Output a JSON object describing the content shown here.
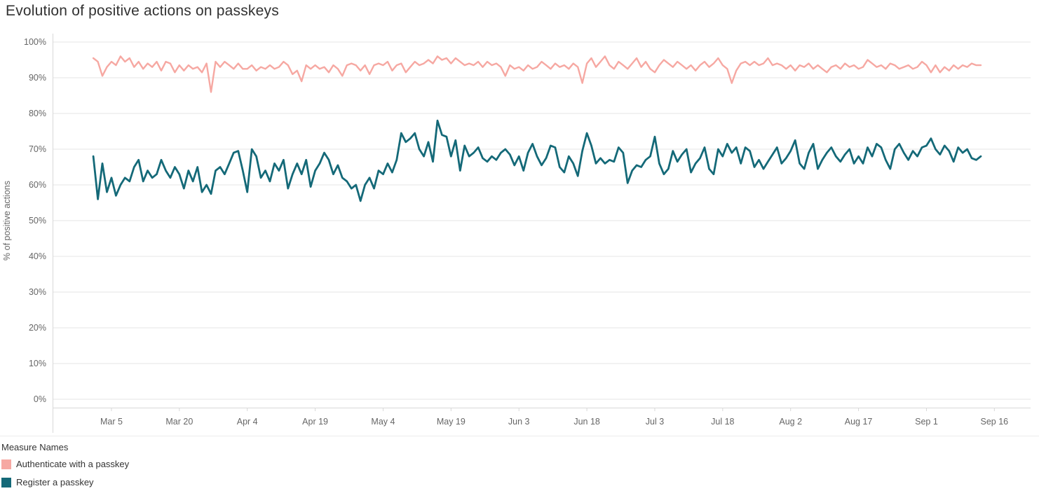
{
  "legend": {
    "title": "Measure Names",
    "items": [
      {
        "label": "Authenticate with a passkey",
        "color": "#f6a8a2"
      },
      {
        "label": "Register a passkey",
        "color": "#146978"
      }
    ]
  },
  "chart_data": {
    "type": "line",
    "title": "Evolution of positive actions on passkeys",
    "xlabel": "",
    "ylabel": "% of positive actions",
    "ylim": [
      0,
      100
    ],
    "y_tick_labels": [
      "0%",
      "10%",
      "20%",
      "30%",
      "40%",
      "50%",
      "60%",
      "70%",
      "80%",
      "90%",
      "100%"
    ],
    "x_tick_labels": [
      "Mar 5",
      "Mar 20",
      "Apr 4",
      "Apr 19",
      "May 4",
      "May 19",
      "Jun 3",
      "Jun 18",
      "Jul 3",
      "Jul 18",
      "Aug 2",
      "Aug 17",
      "Sep 1",
      "Sep 16"
    ],
    "x_tick_day_indices": [
      4,
      19,
      34,
      49,
      64,
      79,
      94,
      109,
      124,
      139,
      154,
      169,
      184,
      199
    ],
    "x_domain_days": [
      -9,
      207
    ],
    "grid": "horizontal-only",
    "legend_position": "bottom-left",
    "background": "#ffffff",
    "series": [
      {
        "name": "Authenticate with a passkey",
        "color": "#f6a8a2",
        "stroke_width": 2.4,
        "start_day_index": 0,
        "values": [
          95.5,
          94.5,
          90.5,
          93,
          94.5,
          93.5,
          96,
          94.5,
          95.5,
          93,
          94.5,
          92.5,
          94,
          93,
          94.5,
          92,
          94.5,
          94,
          91.5,
          93.5,
          92,
          93.5,
          92.5,
          93,
          91.5,
          94,
          86,
          94.5,
          93,
          94.5,
          93.5,
          92.5,
          94,
          92.5,
          92.5,
          93.5,
          92,
          93,
          92.5,
          93.5,
          92.5,
          93,
          94.5,
          93.5,
          91,
          92,
          89,
          93.5,
          92.5,
          93.5,
          92.5,
          93,
          91.5,
          93.5,
          92.5,
          90.5,
          93.5,
          94,
          93.5,
          92,
          93.5,
          91,
          93.5,
          94,
          93.5,
          94.5,
          92,
          93.5,
          94,
          91.5,
          93,
          94.5,
          93.5,
          94,
          95,
          94,
          96,
          95,
          95.5,
          94,
          95.5,
          94.5,
          93.5,
          94,
          93.5,
          94.5,
          93,
          94.5,
          93.5,
          94,
          93,
          90.5,
          93.5,
          92.5,
          93,
          92,
          93.5,
          92.5,
          93,
          94.5,
          93.5,
          92.5,
          94,
          93,
          93.5,
          92.5,
          94,
          93,
          88.5,
          94,
          95.5,
          93,
          94.5,
          96,
          93.5,
          92.5,
          94.5,
          93.5,
          92.5,
          94,
          95.5,
          93,
          94.5,
          92.5,
          91.5,
          93.5,
          95,
          94,
          93,
          94.5,
          93.5,
          92.5,
          93.5,
          92,
          93.5,
          94.5,
          93,
          94,
          95.5,
          93.5,
          92.5,
          88.5,
          92,
          94,
          94.5,
          93.5,
          94.5,
          93.5,
          94,
          95.5,
          93.5,
          94,
          93.5,
          92.5,
          93.5,
          92,
          93.5,
          93,
          94,
          92.5,
          93.5,
          92.5,
          91.5,
          93,
          93.5,
          92.5,
          94,
          93,
          93.5,
          92.5,
          93,
          95,
          94,
          93,
          93.5,
          92.5,
          94,
          93.5,
          92.5,
          93,
          93.5,
          92.5,
          93,
          94.5,
          93.5,
          91.5,
          93.5,
          91.5,
          93,
          92,
          93.5,
          92.5,
          93.5,
          93,
          94,
          93.5,
          93.5
        ]
      },
      {
        "name": "Register a passkey",
        "color": "#146978",
        "stroke_width": 2.8,
        "start_day_index": 0,
        "values": [
          68,
          56,
          66,
          58,
          62,
          57,
          60,
          62,
          61,
          65,
          67,
          61,
          64,
          62,
          63,
          67,
          64,
          62,
          65,
          63,
          59,
          64,
          61,
          65,
          58,
          60,
          57.5,
          64,
          65,
          63,
          66,
          69,
          69.5,
          64,
          58,
          70,
          68,
          62,
          64,
          61,
          66,
          64,
          67,
          59,
          63,
          66,
          63,
          67,
          59.5,
          64,
          66,
          69,
          67,
          63,
          65.5,
          62,
          61,
          59,
          60,
          55.5,
          60,
          62,
          59,
          64,
          63,
          66,
          63.5,
          67,
          74.5,
          72,
          73,
          74.5,
          70,
          68,
          72,
          66.5,
          78,
          74,
          73.5,
          68,
          72.5,
          64,
          71,
          68,
          69,
          70.5,
          67.5,
          66.5,
          68,
          67,
          69,
          70,
          68.5,
          65.5,
          68,
          64,
          69,
          71.5,
          68,
          65.5,
          67.5,
          71,
          70.5,
          65,
          63.5,
          68,
          66,
          62.5,
          69.5,
          74.5,
          71,
          66,
          67.5,
          66,
          67,
          66.5,
          70.5,
          69,
          60.5,
          64,
          65.5,
          65,
          67,
          68,
          73.5,
          66,
          63,
          64.5,
          69.5,
          66.5,
          68.5,
          70,
          63.5,
          66,
          67.5,
          70.5,
          64.5,
          63,
          70,
          68,
          71.5,
          69,
          70.5,
          66,
          70.5,
          69.5,
          65,
          67,
          64.5,
          66.5,
          68.5,
          70.5,
          66,
          67.5,
          69.5,
          72.5,
          66,
          64.5,
          69,
          71.5,
          64.5,
          67,
          69,
          70.5,
          68,
          66.5,
          68.5,
          70,
          66,
          68,
          66,
          70.5,
          68,
          71.5,
          70.5,
          67,
          64.5,
          70,
          71.5,
          69,
          67,
          69.5,
          68,
          70.5,
          71,
          73,
          70,
          68.5,
          71,
          69.5,
          66.5,
          70.5,
          69,
          70,
          67.5,
          67,
          68
        ]
      }
    ]
  }
}
